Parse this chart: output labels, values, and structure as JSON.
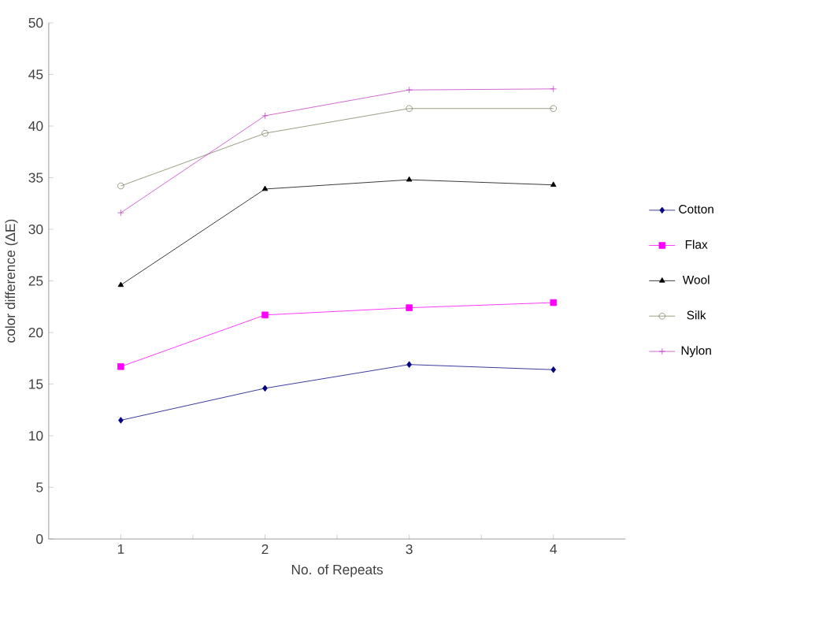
{
  "chart_data": {
    "type": "line",
    "xlabel": "No. of Repeats",
    "ylabel": "color difference (ΔE)",
    "categories": [
      "1",
      "2",
      "3",
      "4"
    ],
    "series": [
      {
        "name": "Cotton",
        "color": "#000080",
        "marker": "diamond",
        "values": [
          11.5,
          14.6,
          16.9,
          16.4
        ]
      },
      {
        "name": "Flax",
        "color": "#ff00ff",
        "marker": "square",
        "values": [
          16.7,
          21.7,
          22.4,
          22.9
        ]
      },
      {
        "name": "Wool",
        "color": "#000000",
        "marker": "triangle",
        "values": [
          24.6,
          33.9,
          34.8,
          34.3
        ]
      },
      {
        "name": "Silk",
        "color": "#808060",
        "marker": "circle",
        "values": [
          34.2,
          39.3,
          41.7,
          41.7
        ]
      },
      {
        "name": "Nylon",
        "color": "#c040c0",
        "marker": "cross",
        "values": [
          31.6,
          41.0,
          43.5,
          43.6
        ]
      }
    ],
    "ylim": [
      0,
      50
    ],
    "yticks": [
      0,
      5,
      10,
      15,
      20,
      25,
      30,
      35,
      40,
      45,
      50
    ],
    "grid": false,
    "legend": "right"
  }
}
